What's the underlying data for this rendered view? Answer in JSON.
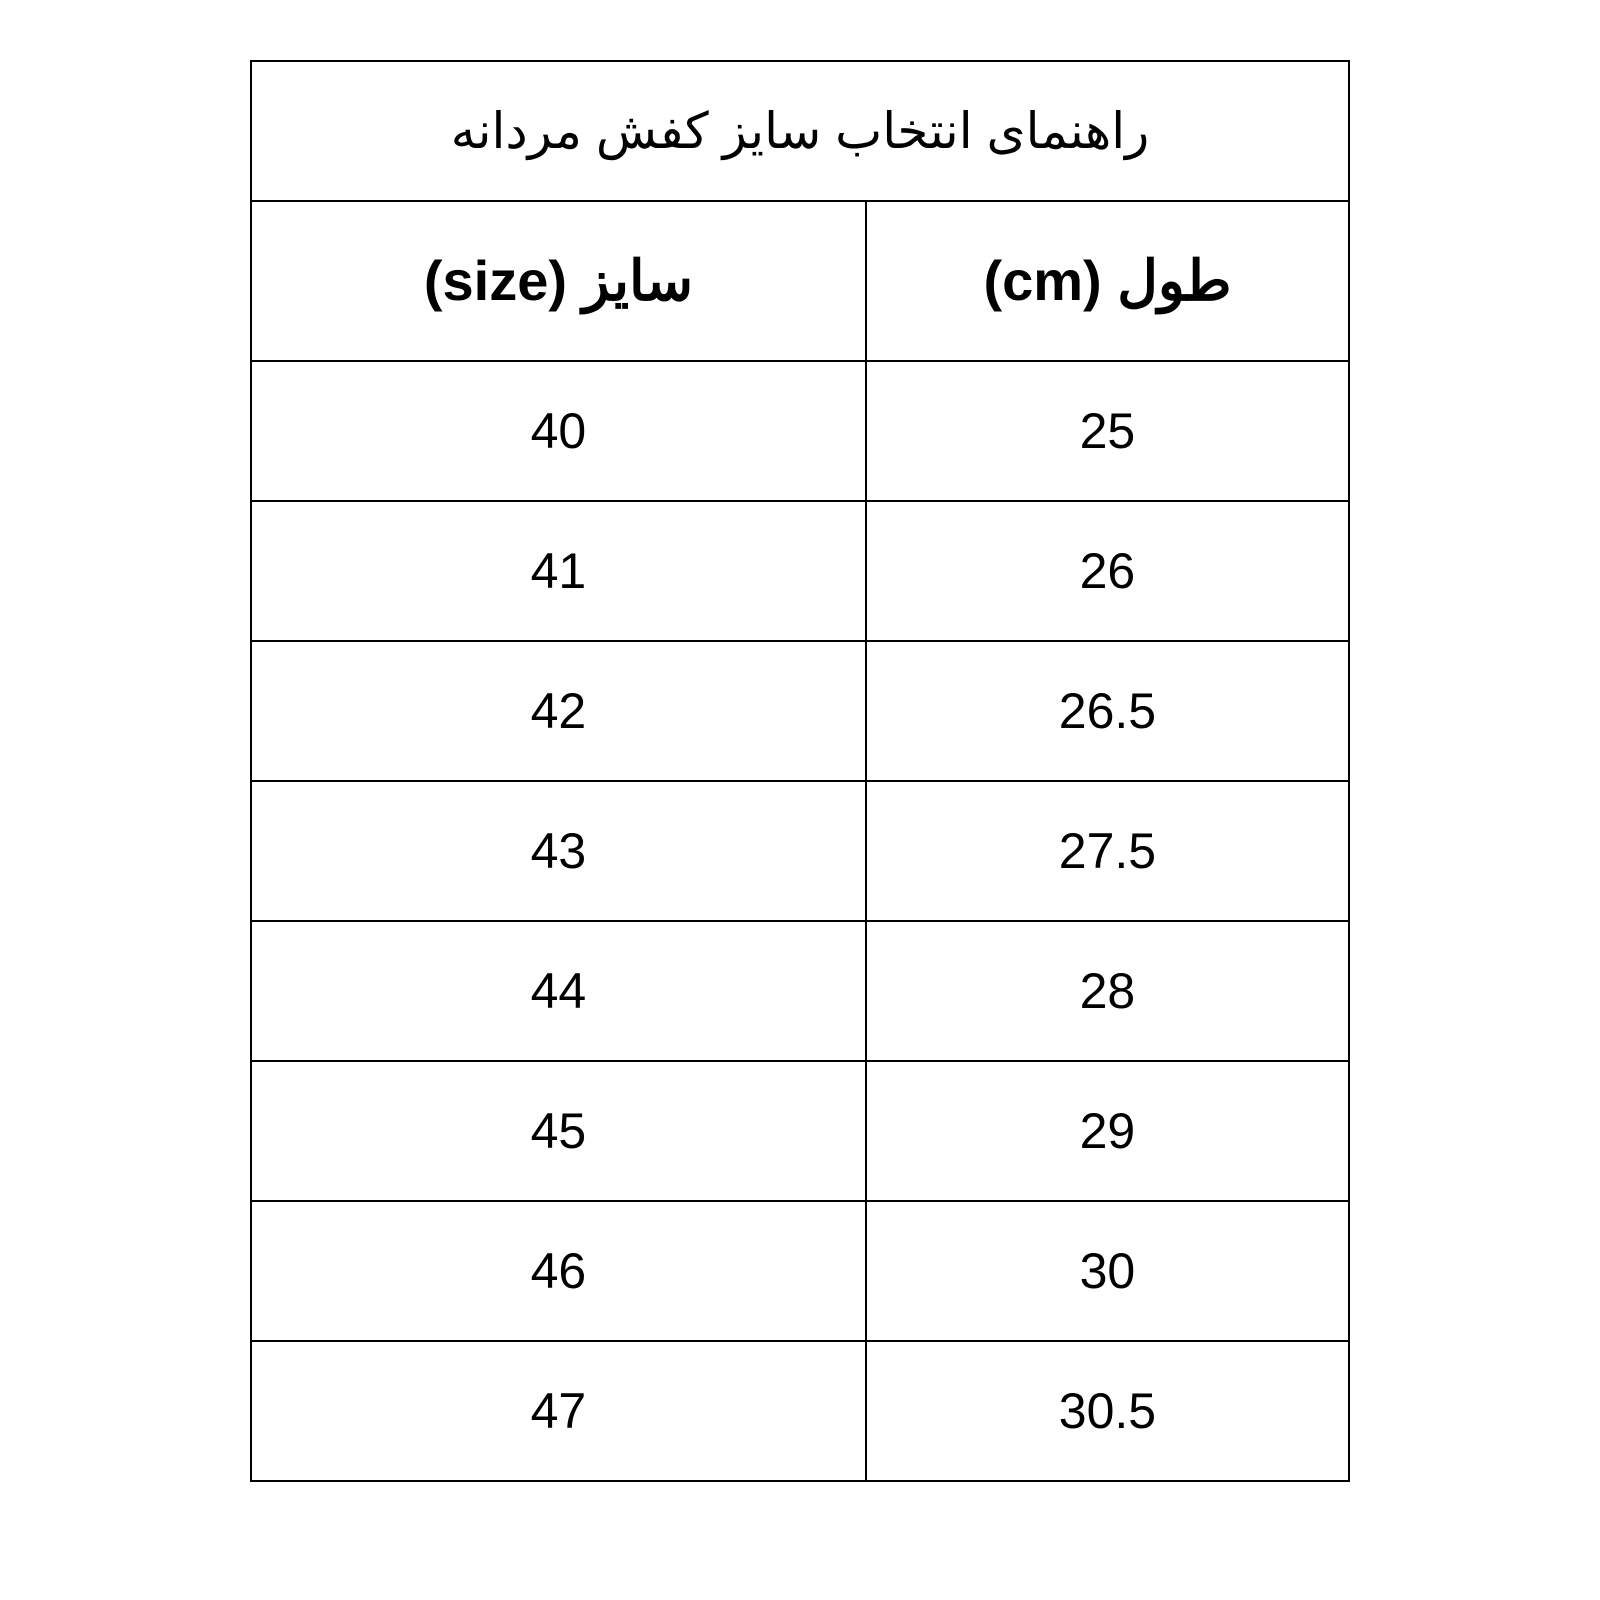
{
  "table": {
    "title": "راهنمای انتخاب سایز کفش مردانه",
    "columns": {
      "size": "سایز (size)",
      "length": "طول (cm)"
    },
    "rows": [
      {
        "size": "40",
        "length": "25"
      },
      {
        "size": "41",
        "length": "26"
      },
      {
        "size": "42",
        "length": "26.5"
      },
      {
        "size": "43",
        "length": "27.5"
      },
      {
        "size": "44",
        "length": "28"
      },
      {
        "size": "45",
        "length": "29"
      },
      {
        "size": "46",
        "length": "30"
      },
      {
        "size": "47",
        "length": "30.5"
      }
    ],
    "style": {
      "border_color": "#000000",
      "border_width": 2,
      "background_color": "#ffffff",
      "title_fontsize": 50,
      "header_fontsize": 56,
      "data_fontsize": 50,
      "text_color": "#000000",
      "col_size_width_pct": 56,
      "col_length_width_pct": 44,
      "title_row_height": 140,
      "header_row_height": 160,
      "data_row_height": 140
    }
  }
}
